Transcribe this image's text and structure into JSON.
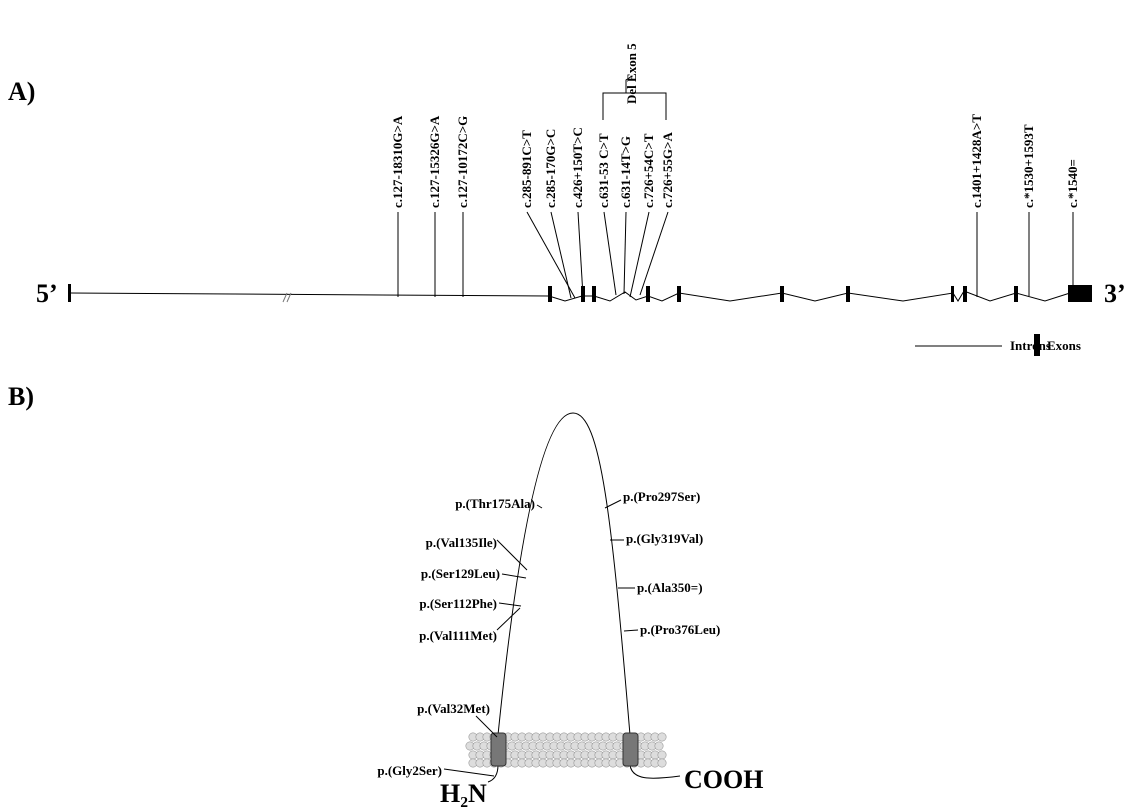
{
  "panel_a": {
    "label": "A)",
    "five_prime": "5’",
    "three_prime": "3’",
    "variants": [
      "c.127-18310G>A",
      "c.127-15326G>A",
      "c.127-10172C>G",
      "c.285-891C>T",
      "c.285-170G>C",
      "c.426+150T>C",
      "c.631-53 C>T",
      "c.631-14T>G",
      "c.726+54C>T",
      "c.726+55G>A",
      "c.1401+1428A>T",
      "c.*1530+1593T",
      "c.*1540="
    ],
    "bracket_label": "Del Exon 5",
    "legend": {
      "introns": "Introns",
      "exons": "Exons"
    }
  },
  "panel_b": {
    "label": "B)",
    "variants": [
      "p.(Thr175Ala)",
      "p.(Val135Ile)",
      "p.(Ser129Leu)",
      "p.(Ser112Phe)",
      "p.(Val111Met)",
      "p.(Val32Met)",
      "p.(Gly2Ser)",
      "p.(Pro297Ser)",
      "p.(Gly319Val)",
      "p.(Ala350=)",
      "p.(Pro376Leu)"
    ],
    "n_terminus": "H₂N",
    "c_terminus": "COOH"
  }
}
